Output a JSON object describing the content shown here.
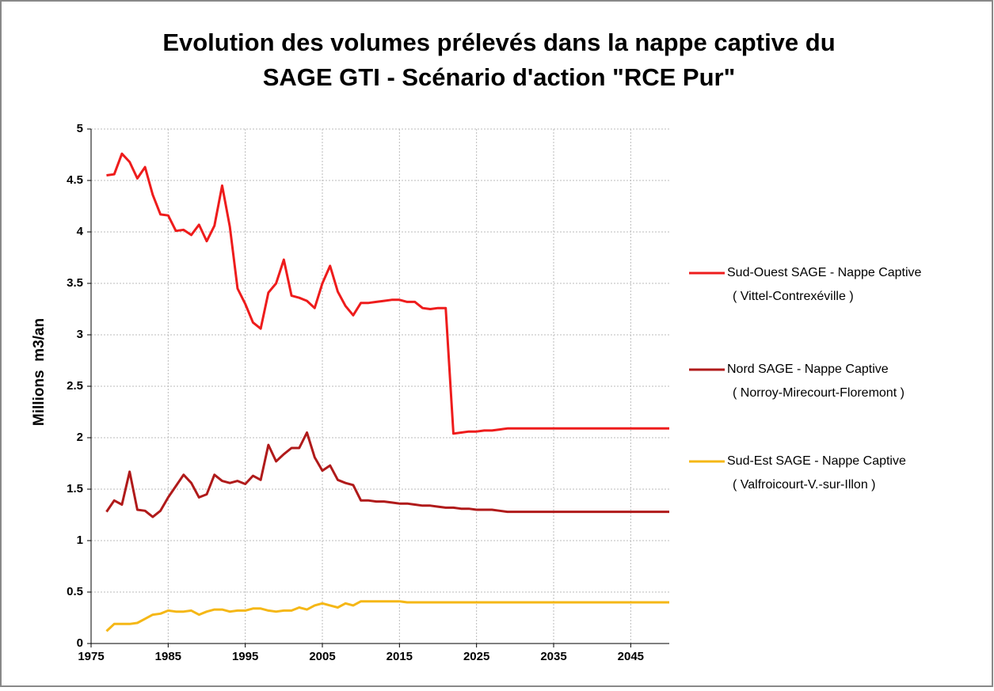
{
  "chart_data": {
    "type": "line",
    "title": [
      "Evolution des volumes prélevés dans la nappe captive du",
      "SAGE GTI - Scénario d'action \"RCE Pur\""
    ],
    "y_label": "Millions  m3/an",
    "x": [
      1977,
      1978,
      1979,
      1980,
      1981,
      1982,
      1983,
      1984,
      1985,
      1986,
      1987,
      1988,
      1989,
      1990,
      1991,
      1992,
      1993,
      1994,
      1995,
      1996,
      1997,
      1998,
      1999,
      2000,
      2001,
      2002,
      2003,
      2004,
      2005,
      2006,
      2007,
      2008,
      2009,
      2010,
      2011,
      2012,
      2013,
      2014,
      2015,
      2016,
      2017,
      2018,
      2019,
      2020,
      2021,
      2022,
      2023,
      2024,
      2025,
      2026,
      2027,
      2028,
      2029,
      2030,
      2050
    ],
    "series": [
      {
        "name": "Sud-Ouest SAGE - Nappe Captive",
        "location": "( Vittel-Contrexéville )",
        "color": "#ee1c1c",
        "values": [
          4.55,
          4.56,
          4.76,
          4.68,
          4.52,
          4.63,
          4.36,
          4.17,
          4.16,
          4.01,
          4.02,
          3.97,
          4.07,
          3.91,
          4.06,
          4.45,
          4.05,
          3.45,
          3.3,
          3.12,
          3.06,
          3.41,
          3.5,
          3.73,
          3.38,
          3.36,
          3.33,
          3.26,
          3.5,
          3.67,
          3.42,
          3.28,
          3.19,
          3.31,
          3.31,
          3.32,
          3.33,
          3.34,
          3.34,
          3.32,
          3.32,
          3.26,
          3.25,
          3.26,
          3.26,
          2.04,
          2.05,
          2.06,
          2.06,
          2.07,
          2.07,
          2.08,
          2.09,
          2.09,
          2.09
        ]
      },
      {
        "name": "Nord SAGE - Nappe Captive",
        "location": "( Norroy-Mirecourt-Floremont )",
        "color": "#b01a1a",
        "values": [
          1.28,
          1.39,
          1.35,
          1.67,
          1.3,
          1.29,
          1.23,
          1.29,
          1.42,
          1.53,
          1.64,
          1.56,
          1.42,
          1.45,
          1.64,
          1.58,
          1.56,
          1.58,
          1.55,
          1.63,
          1.59,
          1.93,
          1.77,
          1.84,
          1.9,
          1.9,
          2.05,
          1.81,
          1.68,
          1.73,
          1.59,
          1.56,
          1.54,
          1.39,
          1.39,
          1.38,
          1.38,
          1.37,
          1.36,
          1.36,
          1.35,
          1.34,
          1.34,
          1.33,
          1.32,
          1.32,
          1.31,
          1.31,
          1.3,
          1.3,
          1.3,
          1.29,
          1.28,
          1.28,
          1.28
        ]
      },
      {
        "name": "Sud-Est SAGE - Nappe Captive",
        "location": "( Valfroicourt-V.-sur-Illon )",
        "color": "#f5b716",
        "values": [
          0.12,
          0.19,
          0.19,
          0.19,
          0.2,
          0.24,
          0.28,
          0.29,
          0.32,
          0.31,
          0.31,
          0.32,
          0.28,
          0.31,
          0.33,
          0.33,
          0.31,
          0.32,
          0.32,
          0.34,
          0.34,
          0.32,
          0.31,
          0.32,
          0.32,
          0.35,
          0.33,
          0.37,
          0.39,
          0.37,
          0.35,
          0.39,
          0.37,
          0.41,
          0.41,
          0.41,
          0.41,
          0.41,
          0.41,
          0.4,
          0.4,
          0.4,
          0.4,
          0.4,
          0.4,
          0.4,
          0.4,
          0.4,
          0.4,
          0.4,
          0.4,
          0.4,
          0.4,
          0.4,
          0.4
        ]
      }
    ],
    "xlim": [
      1975,
      2050
    ],
    "xticks": [
      1975,
      1985,
      1995,
      2005,
      2015,
      2025,
      2035,
      2045
    ],
    "ylim": [
      0,
      5
    ],
    "yticks": [
      0,
      0.5,
      1,
      1.5,
      2,
      2.5,
      3,
      3.5,
      4,
      4.5,
      5
    ],
    "grid": true,
    "legend": "right"
  }
}
